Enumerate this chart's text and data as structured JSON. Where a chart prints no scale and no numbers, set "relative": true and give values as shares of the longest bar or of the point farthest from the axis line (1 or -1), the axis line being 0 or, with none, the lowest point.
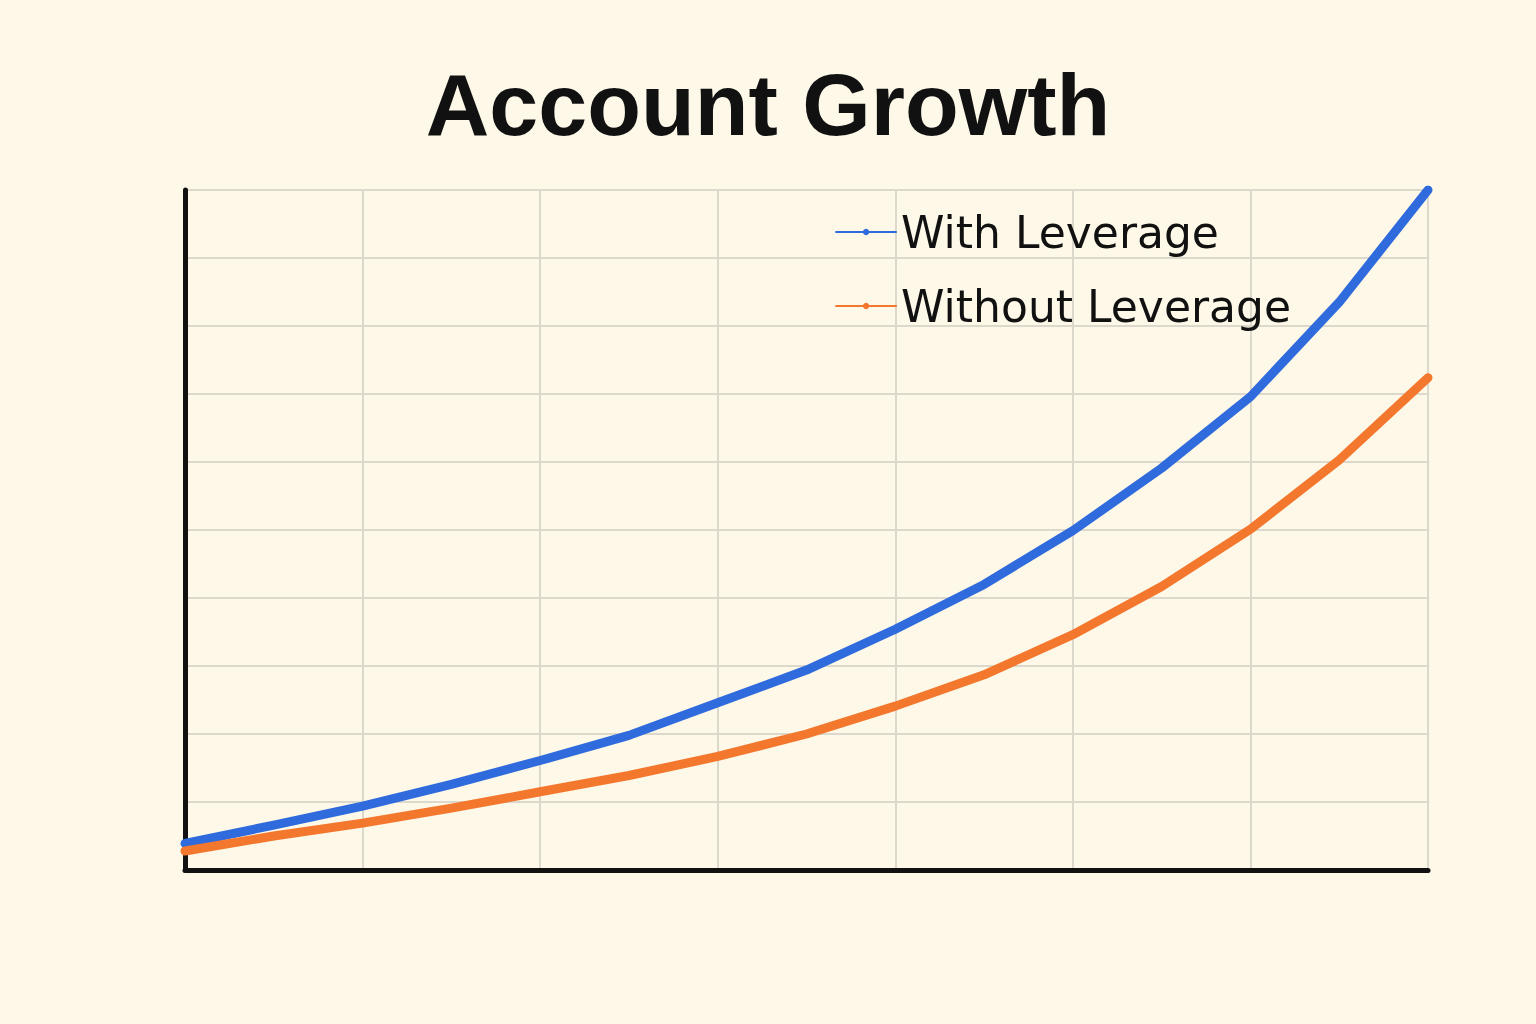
{
  "chart_data": {
    "type": "line",
    "title": "Account Growth",
    "relative": true,
    "grid": true,
    "legend": "top right",
    "marker": "none",
    "line_style": "solid",
    "categories": [
      null,
      null,
      null,
      null,
      null,
      null,
      null,
      null,
      null,
      null,
      null,
      null,
      null,
      null,
      null
    ],
    "series": [
      {
        "name": "With Leverage",
        "color": "#2f6bdc",
        "values": [
          0.039,
          0.066,
          0.094,
          0.126,
          0.161,
          0.198,
          0.246,
          0.294,
          0.354,
          0.42,
          0.499,
          0.591,
          0.696,
          0.835,
          1
        ]
      },
      {
        "name": "Without Leverage",
        "color": "#f4772e",
        "values": [
          0.028,
          0.05,
          0.069,
          0.091,
          0.115,
          0.139,
          0.167,
          0.2,
          0.241,
          0.287,
          0.346,
          0.417,
          0.501,
          0.603,
          0.724
        ]
      }
    ]
  }
}
